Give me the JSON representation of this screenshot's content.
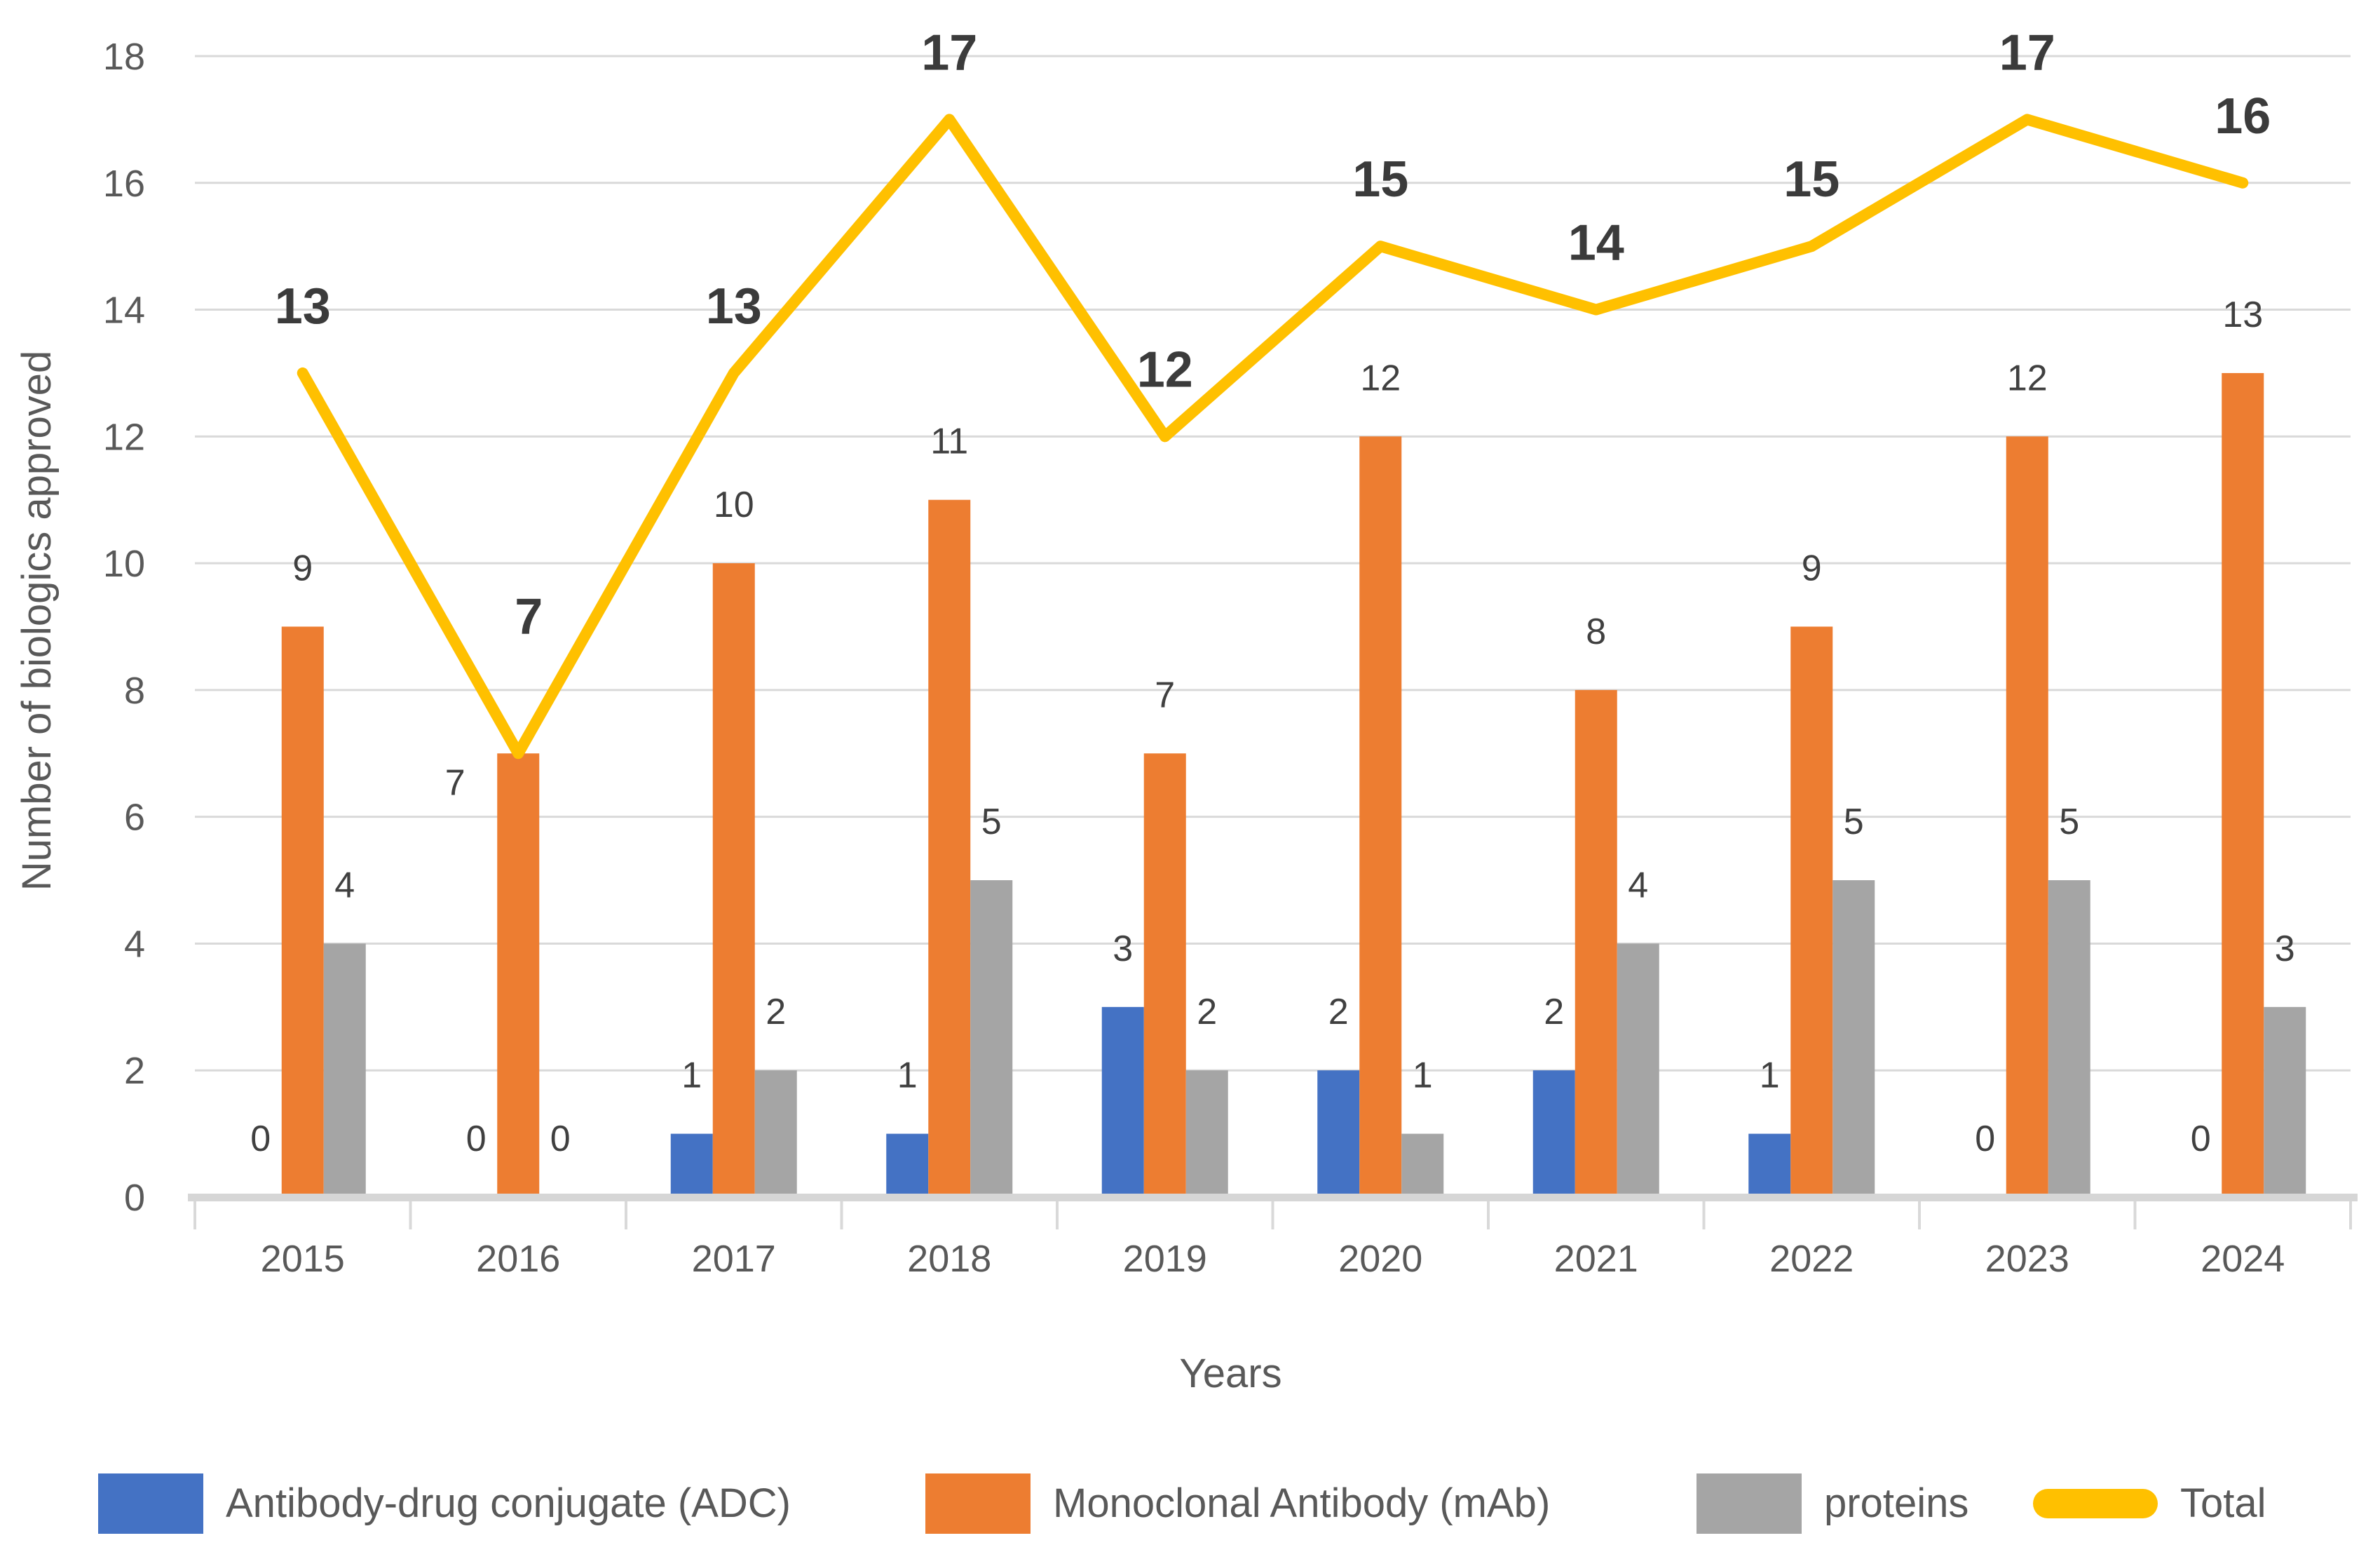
{
  "chart_data": {
    "type": "bar",
    "subtype": "clustered-bars-with-line-overlay",
    "title": "",
    "categories": [
      "2015",
      "2016",
      "2017",
      "2018",
      "2019",
      "2020",
      "2021",
      "2022",
      "2023",
      "2024"
    ],
    "series": [
      {
        "name": "Antibody-drug conjugate (ADC)",
        "kind": "bar",
        "color": "#4472C4",
        "values": [
          0,
          0,
          1,
          1,
          3,
          2,
          2,
          1,
          0,
          0
        ]
      },
      {
        "name": "Monoclonal Antibody (mAb)",
        "kind": "bar",
        "color": "#ED7D31",
        "values": [
          9,
          7,
          10,
          11,
          7,
          12,
          8,
          9,
          12,
          13
        ]
      },
      {
        "name": "proteins",
        "kind": "bar",
        "color": "#A5A5A5",
        "values": [
          4,
          0,
          2,
          5,
          2,
          1,
          4,
          5,
          5,
          3
        ]
      },
      {
        "name": "Total",
        "kind": "line",
        "color": "#FFC000",
        "values": [
          13,
          7,
          13,
          17,
          12,
          15,
          14,
          15,
          17,
          16
        ]
      }
    ],
    "xlabel": "Years",
    "ylabel": "Number of biologics approved",
    "ylim": [
      0,
      18
    ],
    "ytick_step": 2,
    "yticks": [
      0,
      2,
      4,
      6,
      8,
      10,
      12,
      14,
      16,
      18
    ],
    "grid": "horizontal",
    "legend_position": "bottom",
    "data_labels": true
  },
  "colors": {
    "background": "#FFFFFF",
    "gridline": "#D9D9D9",
    "axis_line": "#D6D6D6",
    "tick_label": "#595959",
    "axis_title": "#595959",
    "bar_label": "#404040",
    "total_label": "#3B3B3B",
    "legend_text": "#595959"
  }
}
